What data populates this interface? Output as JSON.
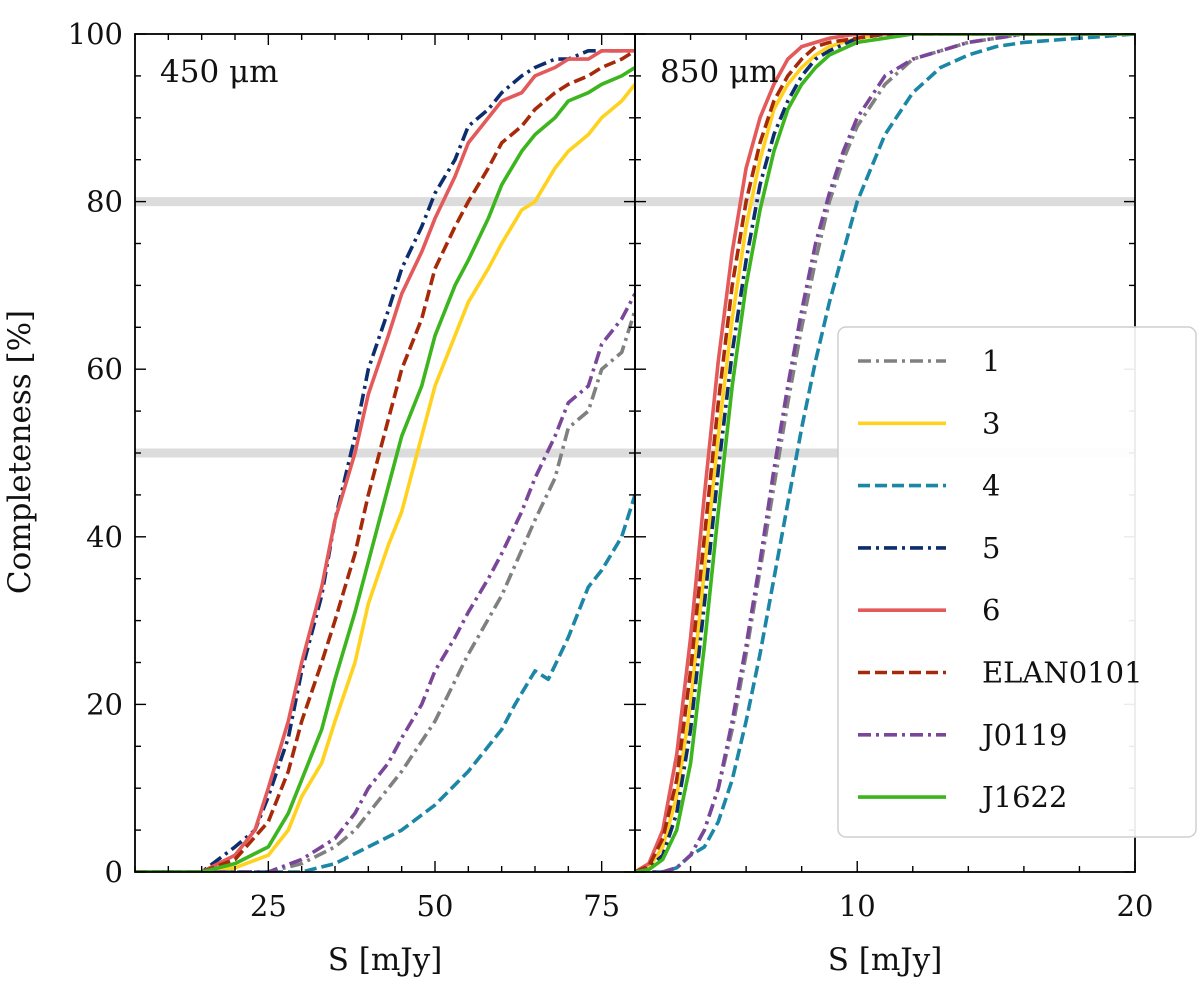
{
  "y_axis_label": "Completeness [%]",
  "x_axis_label": "S [mJy]",
  "legend": [
    {
      "label": "1",
      "color": "#808080",
      "dash": "dashdot"
    },
    {
      "label": "3",
      "color": "#FFD21F",
      "dash": "solid"
    },
    {
      "label": "4",
      "color": "#1B86A6",
      "dash": "dashed"
    },
    {
      "label": "5",
      "color": "#0D2E6E",
      "dash": "dashdot"
    },
    {
      "label": "6",
      "color": "#E45A5A",
      "dash": "solid"
    },
    {
      "label": "ELAN0101",
      "color": "#A62A0A",
      "dash": "dashed"
    },
    {
      "label": "J0119",
      "color": "#7A4699",
      "dash": "dashdot"
    },
    {
      "label": "J1622",
      "color": "#3CB51E",
      "dash": "solid"
    }
  ],
  "chart_data": [
    {
      "type": "line",
      "panel_label": "450 μm",
      "xlim": [
        5,
        80
      ],
      "ylim": [
        0,
        100
      ],
      "xticks": [
        25,
        50,
        75
      ],
      "yticks": [
        0,
        20,
        40,
        60,
        80,
        100
      ],
      "hlines": [
        50,
        80
      ],
      "xlabel": "S [mJy]",
      "ylabel": "Completeness [%]",
      "series": [
        {
          "name": "1",
          "x": [
            5,
            25,
            30,
            35,
            38,
            42,
            45,
            50,
            55,
            60,
            65,
            68,
            70,
            73,
            75,
            78,
            80
          ],
          "y": [
            0,
            0,
            1,
            3,
            5,
            9,
            12,
            18,
            26,
            33,
            42,
            47,
            53,
            55,
            60,
            62,
            67
          ]
        },
        {
          "name": "3",
          "x": [
            5,
            15,
            20,
            25,
            28,
            30,
            33,
            35,
            38,
            40,
            43,
            45,
            48,
            50,
            53,
            55,
            58,
            60,
            63,
            65,
            68,
            70,
            73,
            75,
            78,
            80
          ],
          "y": [
            0,
            0,
            0.5,
            2,
            5,
            9,
            13,
            18,
            25,
            32,
            39,
            43,
            52,
            58,
            64,
            68,
            72,
            75,
            79,
            80,
            84,
            86,
            88,
            90,
            92,
            94
          ]
        },
        {
          "name": "4",
          "x": [
            5,
            30,
            35,
            40,
            45,
            50,
            55,
            58,
            60,
            62,
            65,
            67,
            70,
            73,
            75,
            78,
            80
          ],
          "y": [
            0,
            0,
            1,
            3,
            5,
            8,
            12,
            15,
            17,
            20,
            24,
            23,
            28,
            34,
            36,
            40,
            45
          ]
        },
        {
          "name": "5",
          "x": [
            5,
            15,
            20,
            23,
            25,
            28,
            30,
            33,
            35,
            38,
            40,
            43,
            45,
            48,
            50,
            53,
            55,
            58,
            60,
            63,
            65,
            68,
            70,
            73,
            75,
            78,
            80
          ],
          "y": [
            0,
            0,
            3,
            5,
            9,
            16,
            24,
            33,
            42,
            52,
            60,
            67,
            72,
            77,
            81,
            85,
            89,
            91,
            93,
            95,
            96,
            97,
            97,
            98,
            98,
            98,
            98
          ]
        },
        {
          "name": "6",
          "x": [
            5,
            15,
            20,
            23,
            25,
            28,
            30,
            33,
            35,
            38,
            40,
            43,
            45,
            48,
            50,
            53,
            55,
            58,
            60,
            63,
            65,
            68,
            70,
            73,
            75,
            78,
            80
          ],
          "y": [
            0,
            0,
            2,
            5,
            10,
            18,
            25,
            34,
            42,
            50,
            57,
            64,
            69,
            74,
            78,
            83,
            87,
            90,
            92,
            93,
            95,
            96,
            97,
            97,
            98,
            98,
            98
          ]
        },
        {
          "name": "ELAN0101",
          "x": [
            5,
            15,
            20,
            25,
            28,
            30,
            33,
            35,
            38,
            40,
            43,
            45,
            48,
            50,
            53,
            55,
            58,
            60,
            63,
            65,
            68,
            70,
            73,
            75,
            78,
            80
          ],
          "y": [
            0,
            0,
            1.5,
            6,
            12,
            18,
            25,
            30,
            38,
            45,
            54,
            60,
            66,
            72,
            77,
            80,
            84,
            87,
            89,
            91,
            93,
            94,
            95,
            96,
            97,
            98
          ]
        },
        {
          "name": "J0119",
          "x": [
            5,
            25,
            30,
            35,
            38,
            40,
            43,
            45,
            48,
            50,
            53,
            55,
            58,
            60,
            63,
            65,
            68,
            70,
            73,
            75,
            78,
            80
          ],
          "y": [
            0,
            0,
            1.5,
            4,
            7,
            10,
            13,
            16,
            20,
            24,
            28,
            31,
            35,
            38,
            43,
            47,
            52,
            56,
            58,
            63,
            66,
            69
          ]
        },
        {
          "name": "J1622",
          "x": [
            5,
            15,
            20,
            25,
            28,
            30,
            33,
            35,
            38,
            40,
            43,
            45,
            48,
            50,
            53,
            55,
            58,
            60,
            63,
            65,
            68,
            70,
            73,
            75,
            78,
            80
          ],
          "y": [
            0,
            0,
            1,
            3,
            7,
            11,
            17,
            23,
            31,
            37,
            46,
            52,
            58,
            64,
            70,
            73,
            78,
            82,
            86,
            88,
            90,
            92,
            93,
            94,
            95,
            96
          ]
        }
      ]
    },
    {
      "type": "line",
      "panel_label": "850 μm",
      "xlim": [
        2,
        20
      ],
      "ylim": [
        0,
        100
      ],
      "xticks": [
        10,
        20
      ],
      "yticks": [
        0,
        20,
        40,
        60,
        80,
        100
      ],
      "hlines": [
        50,
        80
      ],
      "xlabel": "S [mJy]",
      "ylabel": "",
      "series": [
        {
          "name": "1",
          "x": [
            2,
            3,
            3.5,
            4,
            4.5,
            5,
            5.5,
            6,
            6.5,
            7,
            7.5,
            8,
            8.5,
            9,
            9.5,
            10,
            11,
            12,
            13,
            14,
            15,
            16,
            18,
            20
          ],
          "y": [
            0,
            0,
            0.5,
            2,
            5,
            10,
            17,
            26,
            36,
            46,
            56,
            65,
            73,
            80,
            85,
            89,
            94,
            97,
            98,
            99,
            99.5,
            100,
            100,
            100
          ]
        },
        {
          "name": "3",
          "x": [
            2,
            2.5,
            3,
            3.5,
            4,
            4.5,
            5,
            5.5,
            6,
            6.5,
            7,
            7.5,
            8,
            8.5,
            9,
            10,
            11,
            12,
            14,
            16,
            20
          ],
          "y": [
            0,
            0.5,
            3,
            9,
            20,
            36,
            52,
            66,
            77,
            85,
            91,
            94,
            96,
            97.5,
            98.5,
            99.5,
            100,
            100,
            100,
            100,
            100
          ]
        },
        {
          "name": "4",
          "x": [
            2,
            3,
            3.5,
            4,
            4.5,
            5,
            5.5,
            6,
            6.5,
            7,
            7.5,
            8,
            8.5,
            9,
            9.5,
            10,
            10.5,
            11,
            12,
            13,
            14,
            15,
            16,
            18,
            20
          ],
          "y": [
            0,
            0,
            0.5,
            2,
            3,
            6,
            11,
            18,
            26,
            35,
            44,
            53,
            61,
            68,
            74,
            80,
            84,
            88,
            93,
            96,
            97.5,
            98.5,
            99,
            99.5,
            100
          ]
        },
        {
          "name": "5",
          "x": [
            2,
            2.5,
            3,
            3.5,
            4,
            4.5,
            5,
            5.5,
            6,
            6.5,
            7,
            7.5,
            8,
            8.5,
            9,
            10,
            11,
            12,
            14,
            16,
            20
          ],
          "y": [
            0,
            0.5,
            2,
            7,
            17,
            32,
            48,
            62,
            73,
            82,
            88,
            92,
            95,
            97,
            98,
            99.5,
            100,
            100,
            100,
            100,
            100
          ]
        },
        {
          "name": "6",
          "x": [
            2,
            2.5,
            3,
            3.5,
            4,
            4.5,
            5,
            5.5,
            6,
            6.5,
            7,
            7.5,
            8,
            8.5,
            9,
            10,
            11,
            12,
            14,
            16,
            20
          ],
          "y": [
            0,
            1,
            5,
            14,
            28,
            45,
            61,
            74,
            84,
            90,
            94,
            97,
            98.5,
            99,
            99.5,
            100,
            100,
            100,
            100,
            100,
            100
          ]
        },
        {
          "name": "ELAN0101",
          "x": [
            2,
            2.5,
            3,
            3.5,
            4,
            4.5,
            5,
            5.5,
            6,
            6.5,
            7,
            7.5,
            8,
            8.5,
            9,
            10,
            11,
            12,
            14,
            16,
            20
          ],
          "y": [
            0,
            0.7,
            4,
            11,
            24,
            40,
            56,
            70,
            80,
            87,
            92,
            95,
            97,
            98.5,
            99,
            99.5,
            100,
            100,
            100,
            100,
            100
          ]
        },
        {
          "name": "J0119",
          "x": [
            2,
            3,
            3.5,
            4,
            4.5,
            5,
            5.5,
            6,
            6.5,
            7,
            7.5,
            8,
            8.5,
            9,
            9.5,
            10,
            11,
            12,
            13,
            14,
            15,
            16,
            18,
            20
          ],
          "y": [
            0,
            0,
            0.5,
            2,
            5,
            10,
            18,
            27,
            37,
            48,
            58,
            67,
            75,
            81,
            86,
            90,
            95,
            97,
            98,
            99,
            99.5,
            100,
            100,
            100
          ]
        },
        {
          "name": "J1622",
          "x": [
            2,
            2.5,
            3,
            3.5,
            4,
            4.5,
            5,
            5.5,
            6,
            6.5,
            7,
            7.5,
            8,
            8.5,
            9,
            10,
            11,
            12,
            14,
            16,
            20
          ],
          "y": [
            0,
            0.3,
            1.5,
            5,
            13,
            27,
            43,
            58,
            70,
            79,
            86,
            91,
            94,
            96,
            97.5,
            99,
            99.5,
            100,
            100,
            100,
            100
          ]
        }
      ]
    }
  ]
}
